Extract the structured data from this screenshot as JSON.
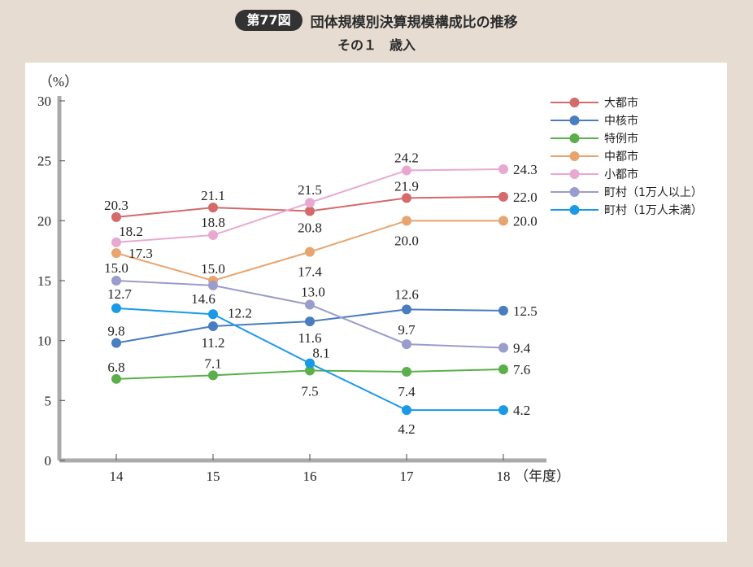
{
  "header": {
    "badge": "第77図",
    "title": "団体規模別決算規模構成比の推移",
    "subtitle": "その１　歳入"
  },
  "chart_data": {
    "type": "line",
    "x": [
      "14",
      "15",
      "16",
      "17",
      "18"
    ],
    "xlabel": "（年度）",
    "ylabel": "（%）",
    "ylim": [
      0,
      30
    ],
    "yticks": [
      "0",
      "5",
      "10",
      "15",
      "20",
      "25",
      "30"
    ],
    "legend_position": "top-right",
    "series": [
      {
        "name": "大都市",
        "color": "#d46a6a",
        "values": [
          20.3,
          21.1,
          20.8,
          21.9,
          22.0
        ],
        "labels": [
          "20.3",
          "21.1",
          "20.8",
          "21.9",
          "22.0"
        ]
      },
      {
        "name": "中核市",
        "color": "#4a7dbf",
        "values": [
          9.8,
          11.2,
          11.6,
          12.6,
          12.5
        ],
        "labels": [
          "9.8",
          "11.2",
          "11.6",
          "12.6",
          "12.5"
        ]
      },
      {
        "name": "特例市",
        "color": "#5aaf4a",
        "values": [
          6.8,
          7.1,
          7.5,
          7.4,
          7.6
        ],
        "labels": [
          "6.8",
          "7.1",
          "7.5",
          "7.4",
          "7.6"
        ]
      },
      {
        "name": "中都市",
        "color": "#e8a46e",
        "values": [
          17.3,
          15.0,
          17.4,
          20.0,
          20.0
        ],
        "labels": [
          "17.3",
          "15.0",
          "17.4",
          "20.0",
          "20.0"
        ]
      },
      {
        "name": "小都市",
        "color": "#e8a9d0",
        "values": [
          18.2,
          18.8,
          21.5,
          24.2,
          24.3
        ],
        "labels": [
          "18.2",
          "18.8",
          "21.5",
          "24.2",
          "24.3"
        ]
      },
      {
        "name": "町村（1万人以上）",
        "color": "#9a9ccc",
        "values": [
          15.0,
          14.6,
          13.0,
          9.7,
          9.4
        ],
        "labels": [
          "15.0",
          "14.6",
          "13.0",
          "9.7",
          "9.4"
        ]
      },
      {
        "name": "町村（1万人未満）",
        "color": "#1a9ae6",
        "values": [
          12.7,
          12.2,
          8.1,
          4.2,
          4.2
        ],
        "labels": [
          "12.7",
          "12.2",
          "8.1",
          "4.2",
          "4.2"
        ]
      }
    ]
  }
}
